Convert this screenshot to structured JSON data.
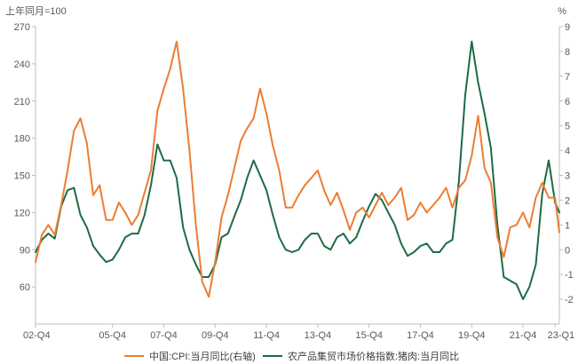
{
  "chart_data": {
    "type": "line",
    "left_axis_unit": "上年同月=100",
    "right_axis_unit": "%",
    "x_ticks": [
      "02-Q4",
      "05-Q4",
      "07-Q4",
      "09-Q4",
      "11-Q4",
      "13-Q4",
      "15-Q4",
      "17-Q4",
      "19-Q4",
      "21-Q4",
      "23-Q1"
    ],
    "y_left": {
      "min": 30,
      "max": 270,
      "ticks": [
        60,
        90,
        120,
        150,
        180,
        210,
        240,
        270
      ]
    },
    "y_right": {
      "min": -3,
      "max": 9,
      "ticks": [
        -2,
        -1,
        0,
        1,
        2,
        3,
        4,
        5,
        6,
        7,
        8,
        9
      ]
    },
    "grid": false,
    "legend_position": "bottom",
    "colors": {
      "cpi": "#ED7D31",
      "pork": "#1E6B45",
      "axis": "#BFBFBF",
      "text": "#595959"
    },
    "x": [
      "2002-10",
      "2003-01",
      "2003-04",
      "2003-07",
      "2003-10",
      "2004-01",
      "2004-04",
      "2004-07",
      "2004-10",
      "2005-01",
      "2005-04",
      "2005-07",
      "2005-10",
      "2006-01",
      "2006-04",
      "2006-07",
      "2006-10",
      "2007-01",
      "2007-04",
      "2007-07",
      "2007-10",
      "2008-01",
      "2008-04",
      "2008-07",
      "2008-10",
      "2009-01",
      "2009-04",
      "2009-07",
      "2009-10",
      "2010-01",
      "2010-04",
      "2010-07",
      "2010-10",
      "2011-01",
      "2011-04",
      "2011-07",
      "2011-10",
      "2012-01",
      "2012-04",
      "2012-07",
      "2012-10",
      "2013-01",
      "2013-04",
      "2013-07",
      "2013-10",
      "2014-01",
      "2014-04",
      "2014-07",
      "2014-10",
      "2015-01",
      "2015-04",
      "2015-07",
      "2015-10",
      "2016-01",
      "2016-04",
      "2016-07",
      "2016-10",
      "2017-01",
      "2017-04",
      "2017-07",
      "2017-10",
      "2018-01",
      "2018-04",
      "2018-07",
      "2018-10",
      "2019-01",
      "2019-04",
      "2019-07",
      "2019-10",
      "2020-01",
      "2020-04",
      "2020-07",
      "2020-10",
      "2021-01",
      "2021-04",
      "2021-07",
      "2021-10",
      "2022-01",
      "2022-04",
      "2022-07",
      "2022-10",
      "2023-01",
      "2023-03"
    ],
    "series": [
      {
        "name": "中国:CPI:当月同比(右轴)",
        "axis": "right",
        "values": [
          -0.5,
          0.6,
          1.0,
          0.6,
          1.8,
          3.2,
          4.8,
          5.3,
          4.3,
          2.2,
          2.6,
          1.2,
          1.2,
          1.9,
          1.5,
          1.0,
          1.4,
          2.3,
          3.2,
          5.6,
          6.5,
          7.3,
          8.4,
          6.5,
          4.0,
          1.0,
          -1.3,
          -1.9,
          -0.5,
          1.3,
          2.2,
          3.3,
          4.4,
          4.9,
          5.3,
          6.5,
          5.5,
          4.2,
          3.2,
          1.7,
          1.7,
          2.2,
          2.6,
          2.9,
          3.2,
          2.4,
          1.8,
          2.3,
          1.6,
          0.8,
          1.5,
          1.7,
          1.3,
          1.8,
          2.3,
          1.8,
          2.1,
          2.5,
          1.2,
          1.4,
          1.9,
          1.5,
          1.8,
          2.1,
          2.5,
          1.7,
          2.5,
          2.8,
          3.8,
          5.4,
          3.3,
          2.7,
          0.5,
          -0.3,
          0.9,
          1.0,
          1.5,
          0.9,
          2.1,
          2.7,
          2.1,
          2.1,
          0.7
        ]
      },
      {
        "name": "农产品集贸市场价格指数:猪肉:当月同比",
        "axis": "left",
        "values": [
          88,
          98,
          103,
          99,
          125,
          138,
          140,
          118,
          108,
          93,
          86,
          80,
          82,
          90,
          100,
          103,
          103,
          118,
          142,
          175,
          162,
          162,
          148,
          108,
          90,
          78,
          68,
          68,
          78,
          100,
          103,
          117,
          130,
          148,
          162,
          150,
          138,
          118,
          100,
          90,
          88,
          90,
          98,
          103,
          103,
          93,
          90,
          100,
          103,
          95,
          100,
          113,
          125,
          135,
          130,
          120,
          110,
          95,
          85,
          88,
          93,
          95,
          88,
          88,
          95,
          98,
          145,
          215,
          258,
          225,
          200,
          172,
          110,
          68,
          65,
          62,
          50,
          60,
          78,
          135,
          162,
          128,
          120
        ]
      }
    ]
  }
}
